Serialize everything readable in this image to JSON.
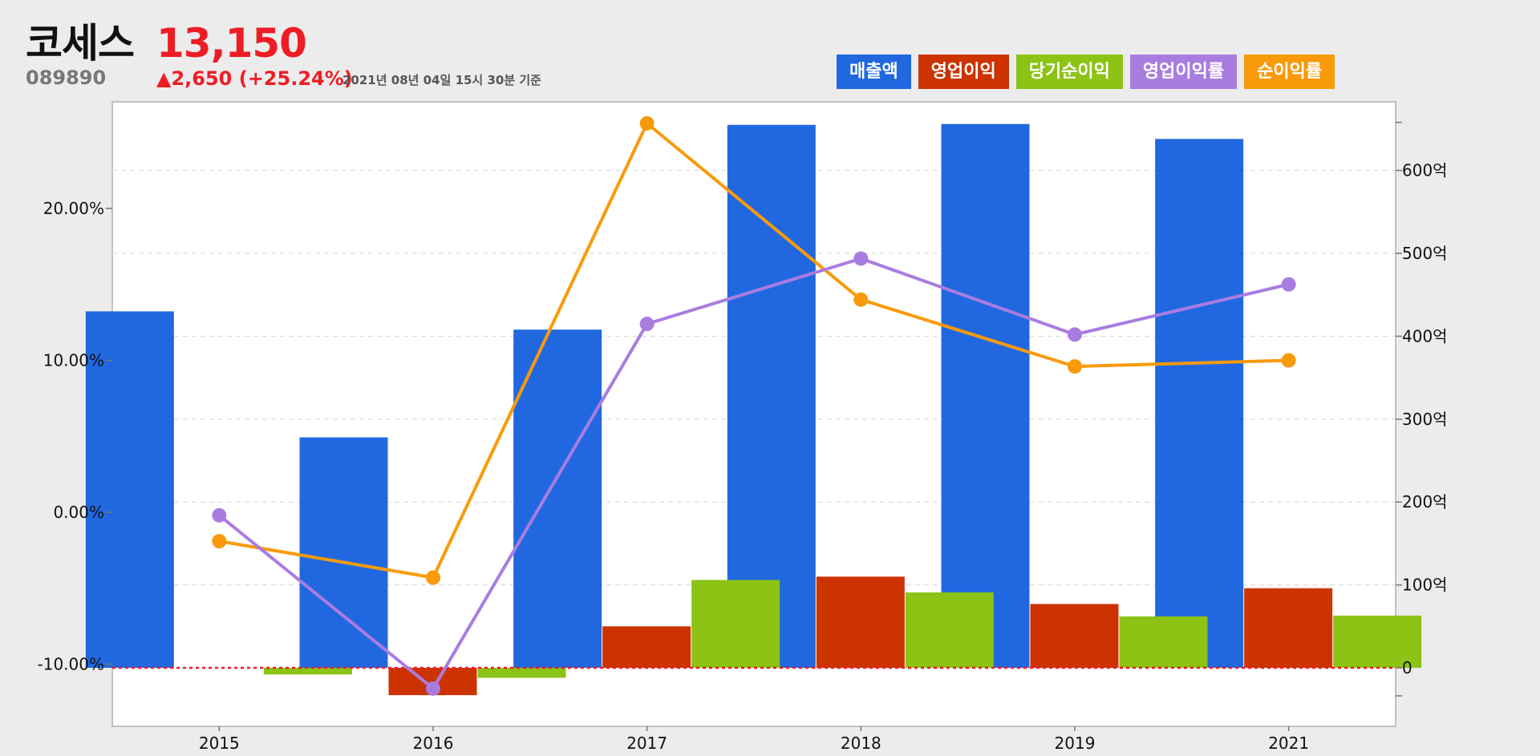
{
  "stock": {
    "name": "코세스",
    "price": "13,150",
    "code": "089890",
    "change": "▲2,650 (+25.24%)",
    "timestamp": "2021년 08년 04일 15시 30분 기준"
  },
  "colors": {
    "revenue": "#2168e0",
    "operating_profit": "#cc3300",
    "net_income": "#8cc314",
    "operating_margin": "#a97de0",
    "net_margin": "#f99a0b"
  },
  "chart_data": {
    "type": "bar",
    "categories": [
      "2015",
      "2016",
      "2017",
      "2018",
      "2019",
      "2021"
    ],
    "y_left": {
      "min": -10,
      "max": 20,
      "ticks": [
        -10,
        0,
        10,
        20
      ],
      "tick_labels": [
        "-10.00%",
        "0.00%",
        "10.00%",
        "20.00%"
      ]
    },
    "y_right": {
      "ticks": [
        0,
        100,
        200,
        300,
        400,
        500,
        600
      ],
      "tick_labels": [
        "0",
        "100억",
        "200억",
        "300억",
        "400억",
        "500억",
        "600억"
      ]
    },
    "series": [
      {
        "name": "매출액",
        "type": "bar",
        "axis": "right",
        "color": "#2168e0",
        "values": [
          430,
          278,
          408,
          655,
          656,
          638
        ]
      },
      {
        "name": "영업이익",
        "type": "bar",
        "axis": "right",
        "color": "#cc3300",
        "values": [
          0,
          -33,
          50,
          110,
          77,
          96
        ]
      },
      {
        "name": "당기순이익",
        "type": "bar",
        "axis": "right",
        "color": "#8cc314",
        "values": [
          -8,
          -12,
          106,
          91,
          62,
          63
        ]
      },
      {
        "name": "영업이익률",
        "type": "line",
        "axis": "left",
        "color": "#a97de0",
        "values": [
          -0.2,
          -11.6,
          12.4,
          16.7,
          11.7,
          15.0
        ]
      },
      {
        "name": "순이익률",
        "type": "line",
        "axis": "left",
        "color": "#f99a0b",
        "values": [
          -1.9,
          -4.3,
          25.6,
          14.0,
          9.6,
          10.0
        ]
      }
    ],
    "grid": true,
    "legend": "top-right",
    "zero_line": {
      "axis": "right",
      "value": 0,
      "color": "#ee1c25"
    }
  }
}
